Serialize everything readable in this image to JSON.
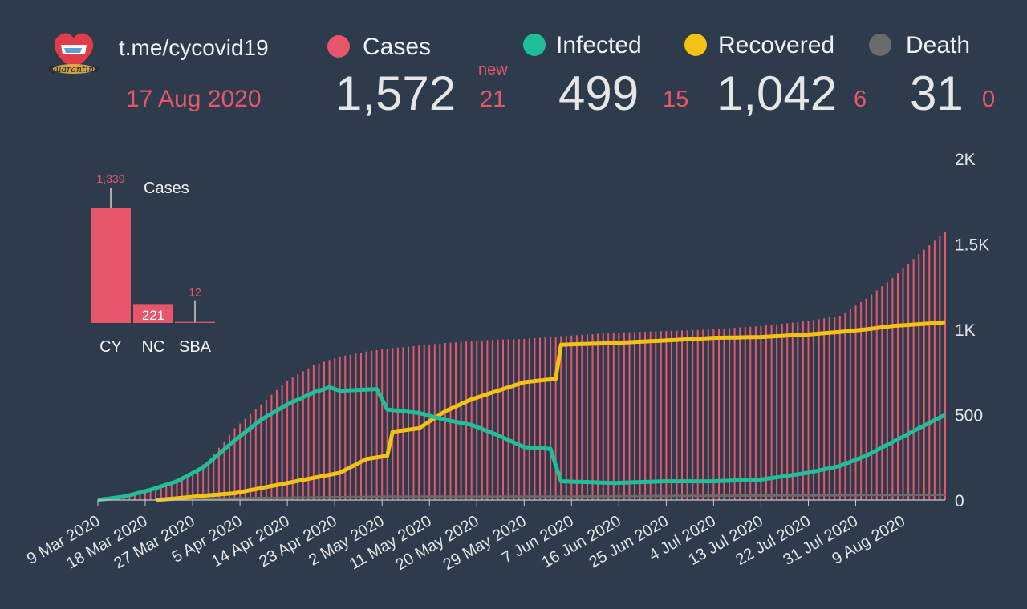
{
  "header": {
    "link": "t.me/cycovid19",
    "date": "17 Aug 2020",
    "new_label": "new",
    "stats": [
      {
        "key": "cases",
        "label": "Cases",
        "value": "1,572",
        "delta": "21",
        "color": "#e8566b"
      },
      {
        "key": "infected",
        "label": "Infected",
        "value": "499",
        "delta": "15",
        "color": "#1fbf9a"
      },
      {
        "key": "recovered",
        "label": "Recovered",
        "value": "1,042",
        "delta": "6",
        "color": "#f2c314"
      },
      {
        "key": "death",
        "label": "Death",
        "value": "31",
        "delta": "0",
        "color": "#6b6b6b"
      }
    ]
  },
  "logo": {
    "text": "Quarantine",
    "icon": "heart-cyprus-flag-icon"
  },
  "colors": {
    "background": "#2d3b4d",
    "cases": "#e8566b",
    "infected": "#1fbf9a",
    "recovered": "#f2c314",
    "death": "#6b6b6b"
  },
  "chart_data": [
    {
      "type": "bar",
      "title": "Cases",
      "categories": [
        "CY",
        "NC",
        "SBA"
      ],
      "values": [
        1339,
        221,
        12
      ],
      "value_labels": [
        "1,339",
        "221",
        "12"
      ]
    },
    {
      "type": "line",
      "x_ticks": [
        "9 Mar 2020",
        "18 Mar 2020",
        "27 Mar 2020",
        "5 Apr 2020",
        "14 Apr 2020",
        "23 Apr 2020",
        "2 May 2020",
        "11 May 2020",
        "20 May 2020",
        "29 May 2020",
        "7 Jun 2020",
        "16 Jun 2020",
        "25 Jun 2020",
        "4 Jul 2020",
        "13 Jul 2020",
        "22 Jul 2020",
        "31 Jul 2020",
        "9 Aug 2020"
      ],
      "y_ticks": [
        "0",
        "500",
        "1K",
        "1.5K",
        "2K"
      ],
      "ylim": [
        0,
        2000
      ],
      "start": "2020-03-09",
      "end": "2020-08-17",
      "series": [
        {
          "name": "Cases",
          "style": "bars",
          "points": [
            [
              "2020-03-09",
              2
            ],
            [
              "2020-03-15",
              20
            ],
            [
              "2020-03-20",
              70
            ],
            [
              "2020-03-25",
              130
            ],
            [
              "2020-03-30",
              230
            ],
            [
              "2020-04-04",
              420
            ],
            [
              "2020-04-09",
              560
            ],
            [
              "2020-04-14",
              700
            ],
            [
              "2020-04-19",
              790
            ],
            [
              "2020-04-24",
              840
            ],
            [
              "2020-04-29",
              870
            ],
            [
              "2020-05-04",
              890
            ],
            [
              "2020-05-09",
              905
            ],
            [
              "2020-05-14",
              920
            ],
            [
              "2020-05-19",
              930
            ],
            [
              "2020-05-24",
              940
            ],
            [
              "2020-05-29",
              944
            ],
            [
              "2020-06-05",
              960
            ],
            [
              "2020-06-15",
              980
            ],
            [
              "2020-06-25",
              990
            ],
            [
              "2020-07-04",
              1000
            ],
            [
              "2020-07-13",
              1020
            ],
            [
              "2020-07-22",
              1050
            ],
            [
              "2020-07-28",
              1080
            ],
            [
              "2020-08-02",
              1180
            ],
            [
              "2020-08-07",
              1300
            ],
            [
              "2020-08-12",
              1440
            ],
            [
              "2020-08-17",
              1572
            ]
          ]
        },
        {
          "name": "Infected",
          "style": "line",
          "points": [
            [
              "2020-03-09",
              0
            ],
            [
              "2020-03-14",
              20
            ],
            [
              "2020-03-19",
              60
            ],
            [
              "2020-03-24",
              110
            ],
            [
              "2020-03-29",
              190
            ],
            [
              "2020-04-04",
              350
            ],
            [
              "2020-04-09",
              470
            ],
            [
              "2020-04-14",
              560
            ],
            [
              "2020-04-19",
              630
            ],
            [
              "2020-04-22",
              660
            ],
            [
              "2020-04-24",
              640
            ],
            [
              "2020-05-01",
              650
            ],
            [
              "2020-05-03",
              530
            ],
            [
              "2020-05-09",
              510
            ],
            [
              "2020-05-14",
              470
            ],
            [
              "2020-05-19",
              440
            ],
            [
              "2020-05-24",
              380
            ],
            [
              "2020-05-29",
              310
            ],
            [
              "2020-06-03",
              300
            ],
            [
              "2020-06-05",
              110
            ],
            [
              "2020-06-15",
              100
            ],
            [
              "2020-06-25",
              110
            ],
            [
              "2020-07-04",
              110
            ],
            [
              "2020-07-13",
              120
            ],
            [
              "2020-07-22",
              160
            ],
            [
              "2020-07-28",
              200
            ],
            [
              "2020-08-02",
              260
            ],
            [
              "2020-08-07",
              340
            ],
            [
              "2020-08-12",
              420
            ],
            [
              "2020-08-17",
              499
            ]
          ]
        },
        {
          "name": "Recovered",
          "style": "line",
          "points": [
            [
              "2020-03-20",
              0
            ],
            [
              "2020-03-24",
              10
            ],
            [
              "2020-03-29",
              25
            ],
            [
              "2020-04-04",
              40
            ],
            [
              "2020-04-09",
              70
            ],
            [
              "2020-04-14",
              100
            ],
            [
              "2020-04-19",
              130
            ],
            [
              "2020-04-24",
              160
            ],
            [
              "2020-04-29",
              240
            ],
            [
              "2020-05-03",
              260
            ],
            [
              "2020-05-04",
              400
            ],
            [
              "2020-05-09",
              420
            ],
            [
              "2020-05-14",
              520
            ],
            [
              "2020-05-19",
              590
            ],
            [
              "2020-05-24",
              640
            ],
            [
              "2020-05-29",
              690
            ],
            [
              "2020-06-04",
              710
            ],
            [
              "2020-06-05",
              910
            ],
            [
              "2020-06-15",
              920
            ],
            [
              "2020-06-25",
              935
            ],
            [
              "2020-07-04",
              950
            ],
            [
              "2020-07-13",
              955
            ],
            [
              "2020-07-22",
              970
            ],
            [
              "2020-07-28",
              985
            ],
            [
              "2020-08-02",
              1000
            ],
            [
              "2020-08-07",
              1020
            ],
            [
              "2020-08-12",
              1030
            ],
            [
              "2020-08-17",
              1042
            ]
          ]
        },
        {
          "name": "Death",
          "style": "line",
          "points": [
            [
              "2020-03-20",
              0
            ],
            [
              "2020-04-04",
              10
            ],
            [
              "2020-04-19",
              15
            ],
            [
              "2020-05-04",
              20
            ],
            [
              "2020-06-04",
              20
            ],
            [
              "2020-07-04",
              25
            ],
            [
              "2020-08-17",
              31
            ]
          ]
        }
      ]
    }
  ]
}
